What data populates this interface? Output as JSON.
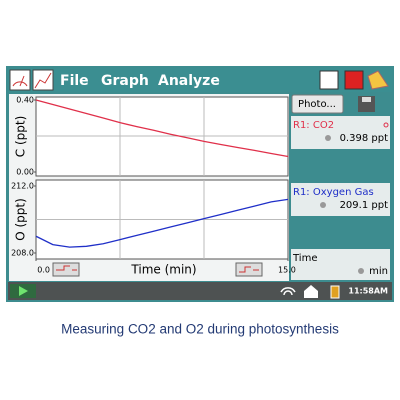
{
  "menu": [
    "File",
    "Graph",
    "Analyze"
  ],
  "chart_data": [
    {
      "type": "line",
      "y_label": "C (ppt)",
      "x": [
        0,
        1,
        2,
        3,
        4,
        5,
        6,
        7,
        8,
        9,
        10,
        11,
        12,
        13,
        14,
        15
      ],
      "series": [
        {
          "name": "R1: CO2",
          "color": "#e0304a",
          "values": [
            0.4,
            0.375,
            0.35,
            0.325,
            0.3,
            0.274,
            0.252,
            0.232,
            0.21,
            0.19,
            0.17,
            0.153,
            0.136,
            0.12,
            0.103,
            0.086
          ]
        }
      ],
      "xlim": [
        0,
        15
      ],
      "ylim": [
        0,
        0.4
      ],
      "yticks": [
        {
          "value": 0,
          "label": "0.00"
        },
        {
          "value": 0.4,
          "label": "0.40"
        }
      ],
      "grid": true
    },
    {
      "type": "line",
      "y_label": "O (ppt)",
      "x_label": "Time (min)",
      "x": [
        0,
        1,
        2,
        3,
        4,
        5,
        6,
        7,
        8,
        9,
        10,
        11,
        12,
        13,
        14,
        15
      ],
      "series": [
        {
          "name": "R1: Oxygen Gas",
          "color": "#1f2fc8",
          "values": [
            209.0,
            208.5,
            208.35,
            208.4,
            208.55,
            208.8,
            209.05,
            209.3,
            209.55,
            209.8,
            210.05,
            210.3,
            210.55,
            210.8,
            211.05,
            211.2
          ]
        }
      ],
      "xlim": [
        0,
        15
      ],
      "xticks": [
        {
          "value": 0,
          "label": "0.0"
        },
        {
          "value": 15,
          "label": "15.0"
        }
      ],
      "ylim": [
        208,
        212
      ],
      "yticks": [
        {
          "value": 208,
          "label": "208.0"
        },
        {
          "value": 212,
          "label": "212.0"
        }
      ],
      "grid": true
    }
  ],
  "sidebar": {
    "button": "Photo...",
    "readings": [
      "0.398 ppt",
      "209.1 ppt"
    ],
    "time_name": "Time",
    "time_unit": "min"
  },
  "status": {
    "time": "11:58AM"
  },
  "caption": "Measuring CO2 and O2 during photosynthesis"
}
